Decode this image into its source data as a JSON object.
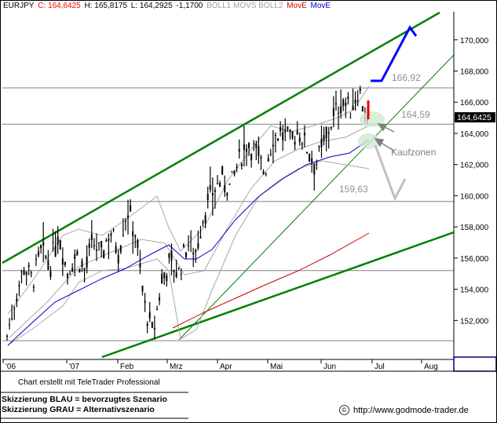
{
  "header": {
    "symbol": "EURJPY",
    "close": "C: 164,6425",
    "high": "H: 165,8175",
    "low": "L: 164,2925",
    "change": "-1,1700",
    "studies_gray": "BOLL1 MOVS BOLL2",
    "study_red": "MovE",
    "study_blue": "MovE",
    "colors": {
      "symbol": "#000000",
      "close": "#ff0000",
      "gray": "#a0a0a0",
      "red": "#cc0000",
      "blue": "#0000cc"
    }
  },
  "footer": {
    "credit": "Chart erstellt mit TeleTrader Professional",
    "legend_blue": "Skizzierung BLAU = bevorzugtes Szenario",
    "legend_gray": "Skizzierung GRAU = Alternativszenario",
    "url": "http://www.godmode-trader.de",
    "url_icon": "copyright-icon"
  },
  "chart_data": {
    "type": "candlestick",
    "y_ticks": [
      152000,
      154000,
      156000,
      158000,
      160000,
      162000,
      164000,
      166000,
      168000,
      170000
    ],
    "ylim": [
      149500,
      171800
    ],
    "x_labels": [
      "'06",
      "'07",
      "Feb",
      "Mrz",
      "Apr",
      "Mai",
      "Jun",
      "Jul",
      "Aug"
    ],
    "last_price_label": "164,6425",
    "horizontal_levels": [
      {
        "value": 150700,
        "label": ""
      },
      {
        "value": 155200,
        "label": ""
      },
      {
        "value": 159630,
        "label": "159,63"
      },
      {
        "value": 164590,
        "label": "164,59"
      },
      {
        "value": 166920,
        "label": "166,92"
      }
    ],
    "annotations": [
      "Kaufzonen"
    ],
    "price_path": [
      {
        "x": "'06",
        "y": 151000
      },
      {
        "x": "'06",
        "y": 153500
      },
      {
        "x": "'06",
        "y": 155500
      },
      {
        "x": "'06",
        "y": 154500
      },
      {
        "x": "'06",
        "y": 156500
      },
      {
        "x": "'06",
        "y": 155500
      },
      {
        "x": "'07",
        "y": 157800
      },
      {
        "x": "'07",
        "y": 155000
      },
      {
        "x": "'07",
        "y": 156300
      },
      {
        "x": "'07",
        "y": 155200
      },
      {
        "x": "Feb",
        "y": 157000
      },
      {
        "x": "Feb",
        "y": 156200
      },
      {
        "x": "Feb",
        "y": 157800
      },
      {
        "x": "Feb",
        "y": 156500
      },
      {
        "x": "Feb",
        "y": 159200
      },
      {
        "x": "Feb",
        "y": 157500
      },
      {
        "x": "Mrz",
        "y": 153000
      },
      {
        "x": "Mrz",
        "y": 151000
      },
      {
        "x": "Mrz",
        "y": 154500
      },
      {
        "x": "Mrz",
        "y": 155800
      },
      {
        "x": "Mrz",
        "y": 155000
      },
      {
        "x": "Mrz",
        "y": 157000
      },
      {
        "x": "Apr",
        "y": 156500
      },
      {
        "x": "Apr",
        "y": 159000
      },
      {
        "x": "Apr",
        "y": 160300
      },
      {
        "x": "Apr",
        "y": 161000
      },
      {
        "x": "Apr",
        "y": 160500
      },
      {
        "x": "Apr",
        "y": 162200
      },
      {
        "x": "Mai",
        "y": 163500
      },
      {
        "x": "Mai",
        "y": 162800
      },
      {
        "x": "Mai",
        "y": 161500
      },
      {
        "x": "Mai",
        "y": 163800
      },
      {
        "x": "Mai",
        "y": 164100
      },
      {
        "x": "Mai",
        "y": 163500
      },
      {
        "x": "Jun",
        "y": 164200
      },
      {
        "x": "Jun",
        "y": 163000
      },
      {
        "x": "Jun",
        "y": 162000
      },
      {
        "x": "Jun",
        "y": 163500
      },
      {
        "x": "Jun",
        "y": 165000
      },
      {
        "x": "Jun",
        "y": 166200
      },
      {
        "x": "Jun",
        "y": 165500
      },
      {
        "x": "Jun",
        "y": 166900
      },
      {
        "x": "Jun",
        "y": 164640
      }
    ],
    "series": [
      {
        "name": "BOLL1",
        "color": "#a0a0a0"
      },
      {
        "name": "MOVS",
        "color": "#a0a0a0"
      },
      {
        "name": "BOLL2",
        "color": "#a0a0a0"
      },
      {
        "name": "MovE",
        "color": "#cc0000"
      },
      {
        "name": "MovE",
        "color": "#0000cc"
      }
    ],
    "scenario_blue": [
      [
        166920,
        166920
      ],
      [
        170600,
        170000
      ]
    ],
    "scenario_gray": [
      [
        163000,
        159630,
        161000
      ]
    ]
  }
}
